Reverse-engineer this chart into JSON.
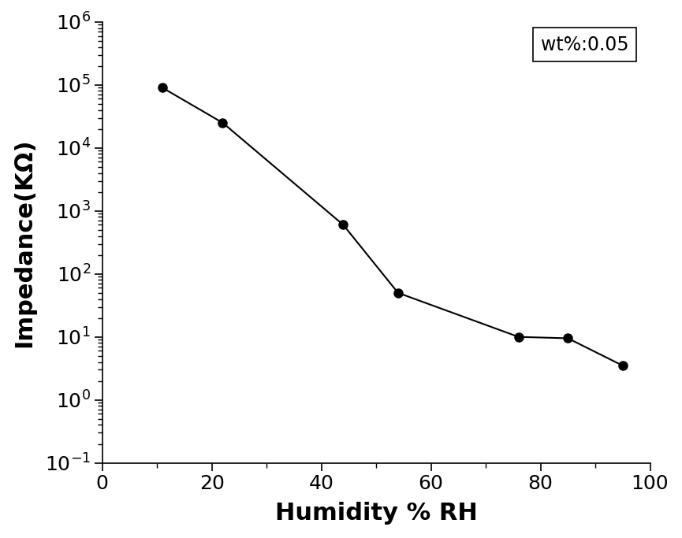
{
  "x": [
    11,
    22,
    44,
    54,
    76,
    85,
    95
  ],
  "y": [
    90000,
    25000,
    600,
    50,
    10,
    9.5,
    3.5
  ],
  "xlabel": "Humidity % RH",
  "ylabel": "Impedance(KΩ)",
  "annotation": "wt%:0.05",
  "xlim": [
    0,
    100
  ],
  "ylim_log": [
    -1,
    6
  ],
  "line_color": "#000000",
  "marker": "o",
  "markersize": 8,
  "linewidth": 1.5,
  "markerfacecolor": "#000000",
  "xlabel_fontsize": 22,
  "ylabel_fontsize": 22,
  "tick_fontsize": 18,
  "annotation_fontsize": 17,
  "background_color": "#ffffff"
}
